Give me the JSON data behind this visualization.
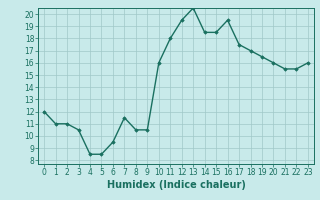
{
  "x": [
    0,
    1,
    2,
    3,
    4,
    5,
    6,
    7,
    8,
    9,
    10,
    11,
    12,
    13,
    14,
    15,
    16,
    17,
    18,
    19,
    20,
    21,
    22,
    23
  ],
  "y": [
    12,
    11,
    11,
    10.5,
    8.5,
    8.5,
    9.5,
    11.5,
    10.5,
    10.5,
    16,
    18,
    19.5,
    20.5,
    18.5,
    18.5,
    19.5,
    17.5,
    17,
    16.5,
    16,
    15.5,
    15.5,
    16
  ],
  "ylim": [
    8,
    20
  ],
  "xlim": [
    -0.5,
    23.5
  ],
  "yticks": [
    8,
    9,
    10,
    11,
    12,
    13,
    14,
    15,
    16,
    17,
    18,
    19,
    20
  ],
  "xticks": [
    0,
    1,
    2,
    3,
    4,
    5,
    6,
    7,
    8,
    9,
    10,
    11,
    12,
    13,
    14,
    15,
    16,
    17,
    18,
    19,
    20,
    21,
    22,
    23
  ],
  "xlabel": "Humidex (Indice chaleur)",
  "line_color": "#1a7060",
  "marker": "D",
  "marker_size": 1.8,
  "bg_color": "#c8eaea",
  "grid_color": "#a0c8c8",
  "line_width": 1.0,
  "xlabel_fontsize": 7,
  "tick_fontsize": 5.5
}
